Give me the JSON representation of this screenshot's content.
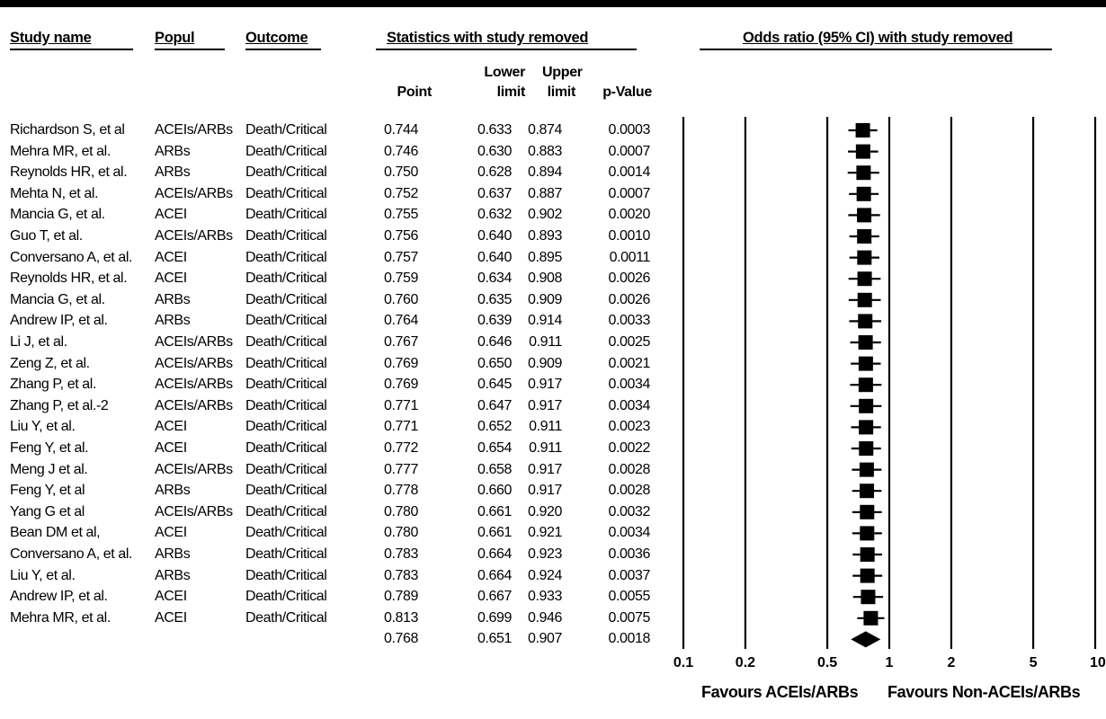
{
  "headers": {
    "study": "Study name",
    "population": "Popul",
    "outcome": "Outcome",
    "statistics": "Statistics with study removed",
    "odds_ratio": "Odds ratio (95% CI) with study removed"
  },
  "subheaders": {
    "point": "Point",
    "lower_1": "Lower",
    "lower_2": "limit",
    "upper_1": "Upper",
    "upper_2": "limit",
    "pvalue": "p-Value"
  },
  "favours": {
    "left": "Favours ACEIs/ARBs",
    "right": "Favours Non-ACEIs/ARBs"
  },
  "chart_data": {
    "type": "table",
    "x_scale": "log",
    "xlim": [
      0.1,
      10
    ],
    "x_ticks": [
      "0.1",
      "0.2",
      "0.5",
      "1",
      "2",
      "5",
      "10"
    ],
    "rows": [
      {
        "study": "Richardson S, et al",
        "pop": "ACEIs/ARBs",
        "outcome": "Death/Critical",
        "point": "0.744",
        "lower": "0.633",
        "upper": "0.874",
        "p": "0.0003"
      },
      {
        "study": "Mehra MR, et al.",
        "pop": "ARBs",
        "outcome": "Death/Critical",
        "point": "0.746",
        "lower": "0.630",
        "upper": "0.883",
        "p": "0.0007"
      },
      {
        "study": "Reynolds HR, et al.",
        "pop": "ARBs",
        "outcome": "Death/Critical",
        "point": "0.750",
        "lower": "0.628",
        "upper": "0.894",
        "p": "0.0014"
      },
      {
        "study": "Mehta N, et al.",
        "pop": "ACEIs/ARBs",
        "outcome": "Death/Critical",
        "point": "0.752",
        "lower": "0.637",
        "upper": "0.887",
        "p": "0.0007"
      },
      {
        "study": "Mancia G, et al.",
        "pop": "ACEI",
        "outcome": "Death/Critical",
        "point": "0.755",
        "lower": "0.632",
        "upper": "0.902",
        "p": "0.0020"
      },
      {
        "study": "Guo T, et al.",
        "pop": "ACEIs/ARBs",
        "outcome": "Death/Critical",
        "point": "0.756",
        "lower": "0.640",
        "upper": "0.893",
        "p": "0.0010"
      },
      {
        "study": "Conversano A, et al.",
        "pop": "ACEI",
        "outcome": "Death/Critical",
        "point": "0.757",
        "lower": "0.640",
        "upper": "0.895",
        "p": "0.0011"
      },
      {
        "study": "Reynolds HR, et al.",
        "pop": "ACEI",
        "outcome": "Death/Critical",
        "point": "0.759",
        "lower": "0.634",
        "upper": "0.908",
        "p": "0.0026"
      },
      {
        "study": "Mancia G, et al.",
        "pop": "ARBs",
        "outcome": "Death/Critical",
        "point": "0.760",
        "lower": "0.635",
        "upper": "0.909",
        "p": "0.0026"
      },
      {
        "study": "Andrew IP, et al.",
        "pop": "ARBs",
        "outcome": "Death/Critical",
        "point": "0.764",
        "lower": "0.639",
        "upper": "0.914",
        "p": "0.0033"
      },
      {
        "study": "Li J, et al.",
        "pop": "ACEIs/ARBs",
        "outcome": "Death/Critical",
        "point": "0.767",
        "lower": "0.646",
        "upper": "0.911",
        "p": "0.0025"
      },
      {
        "study": "Zeng Z, et al.",
        "pop": "ACEIs/ARBs",
        "outcome": "Death/Critical",
        "point": "0.769",
        "lower": "0.650",
        "upper": "0.909",
        "p": "0.0021"
      },
      {
        "study": "Zhang P, et al.",
        "pop": "ACEIs/ARBs",
        "outcome": "Death/Critical",
        "point": "0.769",
        "lower": "0.645",
        "upper": "0.917",
        "p": "0.0034"
      },
      {
        "study": "Zhang P, et al.-2",
        "pop": "ACEIs/ARBs",
        "outcome": "Death/Critical",
        "point": "0.771",
        "lower": "0.647",
        "upper": "0.917",
        "p": "0.0034"
      },
      {
        "study": "Liu Y, et al.",
        "pop": "ACEI",
        "outcome": "Death/Critical",
        "point": "0.771",
        "lower": "0.652",
        "upper": "0.911",
        "p": "0.0023"
      },
      {
        "study": "Feng Y, et al.",
        "pop": "ACEI",
        "outcome": "Death/Critical",
        "point": "0.772",
        "lower": "0.654",
        "upper": "0.911",
        "p": "0.0022"
      },
      {
        "study": "Meng J et al.",
        "pop": "ACEIs/ARBs",
        "outcome": "Death/Critical",
        "point": "0.777",
        "lower": "0.658",
        "upper": "0.917",
        "p": "0.0028"
      },
      {
        "study": "Feng Y, et al",
        "pop": "ARBs",
        "outcome": "Death/Critical",
        "point": "0.778",
        "lower": "0.660",
        "upper": "0.917",
        "p": "0.0028"
      },
      {
        "study": "Yang G et al",
        "pop": "ACEIs/ARBs",
        "outcome": "Death/Critical",
        "point": "0.780",
        "lower": "0.661",
        "upper": "0.920",
        "p": "0.0032"
      },
      {
        "study": "Bean DM et al,",
        "pop": "ACEI",
        "outcome": "Death/Critical",
        "point": "0.780",
        "lower": "0.661",
        "upper": "0.921",
        "p": "0.0034"
      },
      {
        "study": "Conversano A, et al.",
        "pop": "ARBs",
        "outcome": "Death/Critical",
        "point": "0.783",
        "lower": "0.664",
        "upper": "0.923",
        "p": "0.0036"
      },
      {
        "study": "Liu Y, et al.",
        "pop": "ARBs",
        "outcome": "Death/Critical",
        "point": "0.783",
        "lower": "0.664",
        "upper": "0.924",
        "p": "0.0037"
      },
      {
        "study": "Andrew IP, et al.",
        "pop": "ACEI",
        "outcome": "Death/Critical",
        "point": "0.789",
        "lower": "0.667",
        "upper": "0.933",
        "p": "0.0055"
      },
      {
        "study": "Mehra MR, et al.",
        "pop": "ACEI",
        "outcome": "Death/Critical",
        "point": "0.813",
        "lower": "0.699",
        "upper": "0.946",
        "p": "0.0075"
      }
    ],
    "summary": {
      "point": "0.768",
      "lower": "0.651",
      "upper": "0.907",
      "p": "0.0018"
    }
  }
}
